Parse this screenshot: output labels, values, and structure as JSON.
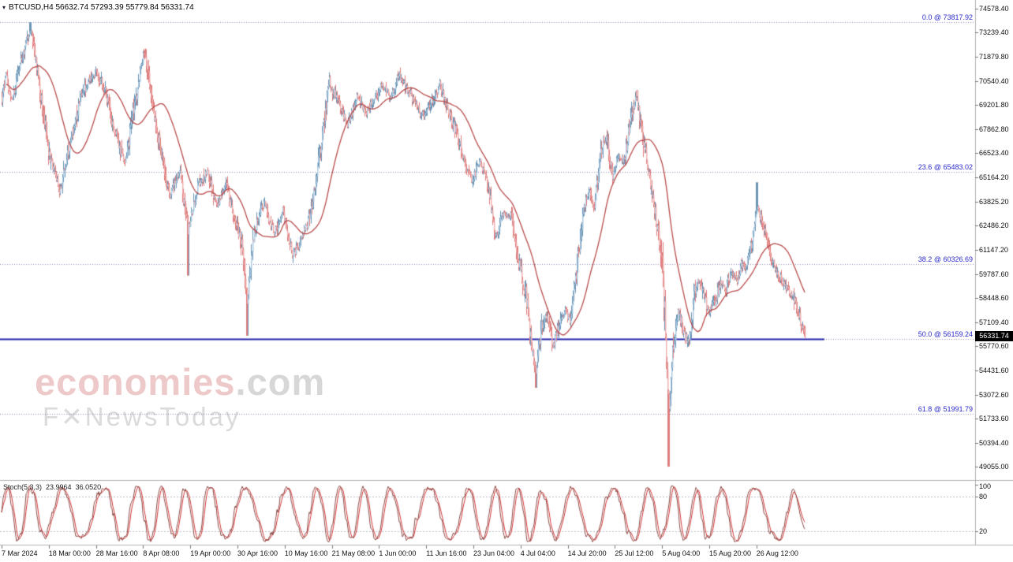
{
  "header": {
    "marker": "▾",
    "symbol_line": "BTCUSD,H4 56632.74 57293.39 55779.84 56331.74"
  },
  "watermark": {
    "brand": "economies",
    "brand_suffix": ".com",
    "tagline": "F✕NewsToday"
  },
  "current_price_label": "56331.74",
  "chart_data": {
    "type": "candlestick",
    "title": "BTCUSD H4 candlestick chart with Fibonacci retracement and Stochastic oscillator",
    "symbol": "BTCUSD",
    "timeframe": "H4",
    "ohlc": {
      "open": 56632.74,
      "high": 57293.39,
      "low": 55779.84,
      "close": 56331.74
    },
    "current_price": 56331.74,
    "ylim": [
      49055.0,
      74578.4
    ],
    "grid": "off",
    "y_axis_ticks": [
      "74578.40",
      "73239.40",
      "71879.80",
      "70540.40",
      "69201.80",
      "67862.80",
      "66523.40",
      "65164.20",
      "63825.20",
      "62486.20",
      "61147.20",
      "59787.60",
      "58448.60",
      "57109.40",
      "55770.60",
      "54431.60",
      "53072.60",
      "51733.60",
      "50394.40",
      "49055.00"
    ],
    "x_axis_ticks": [
      "7 Mar 2024",
      "18 Mar 00:00",
      "28 Mar 16:00",
      "8 Apr 08:00",
      "19 Apr 00:00",
      "30 Apr 16:00",
      "10 May 16:00",
      "21 May 08:00",
      "1 Jun 00:00",
      "11 Jun 16:00",
      "23 Jun 04:00",
      "4 Jul 04:00",
      "14 Jul 20:00",
      "25 Jul 12:00",
      "5 Aug 04:00",
      "15 Aug 20:00",
      "26 Aug 12:00"
    ],
    "fib_levels": [
      {
        "label": "0.0 @ 73817.92",
        "price": 73817.92,
        "solid": false
      },
      {
        "label": "23.6 @ 65483.02",
        "price": 65483.02,
        "solid": false
      },
      {
        "label": "38.2 @ 60326.69",
        "price": 60326.69,
        "solid": false
      },
      {
        "label": "50.0 @ 56159.24",
        "price": 56159.24,
        "solid": true
      },
      {
        "label": "61.8 @ 51991.79",
        "price": 51991.79,
        "solid": false
      }
    ],
    "price_waypoints": [
      [
        0,
        69000
      ],
      [
        7,
        71000
      ],
      [
        14,
        69500
      ],
      [
        26,
        71600
      ],
      [
        38,
        73500
      ],
      [
        50,
        70000
      ],
      [
        62,
        66500
      ],
      [
        75,
        64400
      ],
      [
        88,
        67000
      ],
      [
        100,
        69300
      ],
      [
        112,
        70600
      ],
      [
        122,
        71100
      ],
      [
        133,
        69900
      ],
      [
        145,
        67800
      ],
      [
        158,
        65900
      ],
      [
        170,
        69200
      ],
      [
        182,
        72200
      ],
      [
        193,
        69200
      ],
      [
        204,
        66500
      ],
      [
        215,
        64100
      ],
      [
        227,
        65600
      ],
      [
        238,
        62200
      ],
      [
        250,
        64700
      ],
      [
        262,
        65500
      ],
      [
        274,
        63600
      ],
      [
        286,
        64800
      ],
      [
        297,
        62800
      ],
      [
        306,
        61500
      ],
      [
        313,
        58200
      ],
      [
        322,
        62300
      ],
      [
        334,
        63800
      ],
      [
        347,
        62100
      ],
      [
        358,
        63400
      ],
      [
        370,
        60900
      ],
      [
        381,
        61600
      ],
      [
        393,
        63200
      ],
      [
        405,
        66600
      ],
      [
        417,
        70500
      ],
      [
        428,
        69400
      ],
      [
        440,
        68100
      ],
      [
        452,
        69800
      ],
      [
        463,
        68700
      ],
      [
        474,
        69600
      ],
      [
        484,
        70300
      ],
      [
        494,
        69700
      ],
      [
        505,
        70900
      ],
      [
        516,
        70200
      ],
      [
        526,
        69200
      ],
      [
        536,
        68600
      ],
      [
        546,
        69300
      ],
      [
        557,
        70400
      ],
      [
        566,
        69100
      ],
      [
        576,
        67900
      ],
      [
        588,
        66100
      ],
      [
        598,
        64900
      ],
      [
        608,
        66200
      ],
      [
        618,
        64800
      ],
      [
        628,
        61900
      ],
      [
        638,
        63200
      ],
      [
        648,
        62900
      ],
      [
        658,
        60200
      ],
      [
        666,
        58700
      ],
      [
        673,
        56000
      ],
      [
        679,
        54400
      ],
      [
        686,
        56900
      ],
      [
        693,
        57600
      ],
      [
        700,
        55600
      ],
      [
        708,
        56900
      ],
      [
        716,
        57800
      ],
      [
        723,
        57100
      ],
      [
        731,
        60400
      ],
      [
        739,
        63300
      ],
      [
        746,
        64500
      ],
      [
        753,
        63500
      ],
      [
        761,
        66800
      ],
      [
        768,
        67500
      ],
      [
        776,
        65300
      ],
      [
        783,
        66400
      ],
      [
        791,
        66100
      ],
      [
        799,
        68500
      ],
      [
        806,
        69800
      ],
      [
        813,
        67700
      ],
      [
        820,
        65900
      ],
      [
        827,
        64200
      ],
      [
        834,
        61900
      ],
      [
        840,
        59800
      ],
      [
        845,
        53800
      ],
      [
        848,
        52200
      ],
      [
        853,
        55800
      ],
      [
        859,
        57900
      ],
      [
        866,
        56400
      ],
      [
        873,
        55900
      ],
      [
        879,
        58800
      ],
      [
        886,
        59500
      ],
      [
        893,
        58400
      ],
      [
        899,
        57600
      ],
      [
        906,
        58400
      ],
      [
        913,
        59400
      ],
      [
        919,
        58800
      ],
      [
        926,
        60000
      ],
      [
        933,
        59400
      ],
      [
        939,
        60300
      ],
      [
        946,
        60200
      ],
      [
        953,
        61700
      ],
      [
        959,
        63600
      ],
      [
        966,
        62400
      ],
      [
        973,
        61700
      ],
      [
        979,
        60300
      ],
      [
        986,
        59700
      ],
      [
        993,
        59200
      ],
      [
        999,
        58900
      ],
      [
        1006,
        58500
      ],
      [
        1013,
        57400
      ],
      [
        1020,
        56331.74
      ]
    ],
    "spikes": [
      {
        "x": 38,
        "high": 73817.92
      },
      {
        "x": 238,
        "low": 59700
      },
      {
        "x": 313,
        "low": 56350
      },
      {
        "x": 679,
        "low": 53450
      },
      {
        "x": 847,
        "low": 49055
      },
      {
        "x": 959,
        "high": 64900
      }
    ],
    "stochastic": {
      "label": "Stoch(5,3,3)",
      "k": "23.9964",
      "d": "36.0520",
      "axis_ticks": [
        "100",
        "80",
        "20"
      ],
      "upper_level": 80,
      "lower_level": 20
    },
    "colors": {
      "bull_fill": "#aecbe2",
      "bull_border": "#6b95b5",
      "bear_fill": "#f0b0b0",
      "bear_border": "#dd7d7d",
      "ma": "#b84a4a",
      "fib_text": "#2929c8",
      "fib_line": "#8888bb",
      "level_line": "#2222aa",
      "stoch_k": "#8a4a46",
      "stoch_d": "#d23434",
      "stoch_level": "#bcbccb",
      "axis_text": "#111111",
      "border": "#b0b0b0",
      "badge_bg": "#000000",
      "badge_text": "#ffffff"
    }
  }
}
